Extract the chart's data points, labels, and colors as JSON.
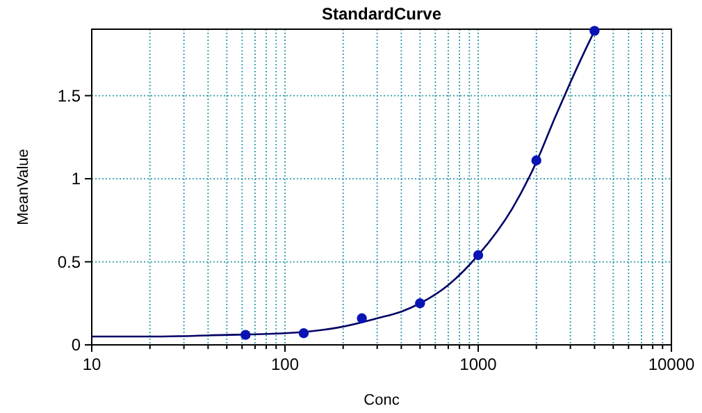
{
  "chart_data": {
    "type": "scatter",
    "title": "StandardCurve",
    "xlabel": "Conc",
    "ylabel": "MeanValue",
    "log": "x",
    "grid": true,
    "marker": "circle",
    "xlim": [
      10,
      10000
    ],
    "xticks": [
      10,
      {
        "value": 20,
        "label": null
      },
      {
        "value": 30,
        "label": null
      },
      {
        "value": 40,
        "label": null
      },
      {
        "value": 50,
        "label": null
      },
      {
        "value": 60,
        "label": null
      },
      {
        "value": 70,
        "label": null
      },
      {
        "value": 80,
        "label": null
      },
      {
        "value": 90,
        "label": null
      },
      100,
      {
        "value": 200,
        "label": null
      },
      {
        "value": 300,
        "label": null
      },
      {
        "value": 400,
        "label": null
      },
      {
        "value": 500,
        "label": null
      },
      {
        "value": 600,
        "label": null
      },
      {
        "value": 700,
        "label": null
      },
      {
        "value": 800,
        "label": null
      },
      {
        "value": 900,
        "label": null
      },
      1000,
      {
        "value": 2000,
        "label": null
      },
      {
        "value": 3000,
        "label": null
      },
      {
        "value": 4000,
        "label": null
      },
      {
        "value": 5000,
        "label": null
      },
      {
        "value": 6000,
        "label": null
      },
      {
        "value": 7000,
        "label": null
      },
      {
        "value": 8000,
        "label": null
      },
      {
        "value": 9000,
        "label": null
      },
      10000
    ],
    "ylim": [
      0,
      1.9
    ],
    "yticks": [
      0,
      0.5,
      1,
      1.5
    ],
    "series": [
      {
        "type": "line",
        "color": "#000066",
        "marker": "none",
        "x": [
          10,
          20,
          50,
          100,
          200,
          300,
          400,
          500,
          700,
          1000,
          1500,
          2000,
          2500,
          3000,
          3500,
          4000
        ],
        "values": [
          0.05,
          0.05,
          0.06,
          0.07,
          0.11,
          0.16,
          0.2,
          0.25,
          0.36,
          0.54,
          0.82,
          1.1,
          1.37,
          1.58,
          1.75,
          1.89
        ]
      },
      {
        "color": "#0a14b4",
        "x": [
          62.5,
          125,
          250,
          500,
          1000,
          2000,
          4000
        ],
        "values": [
          0.06,
          0.07,
          0.16,
          0.25,
          0.54,
          1.11,
          1.89
        ]
      }
    ]
  }
}
